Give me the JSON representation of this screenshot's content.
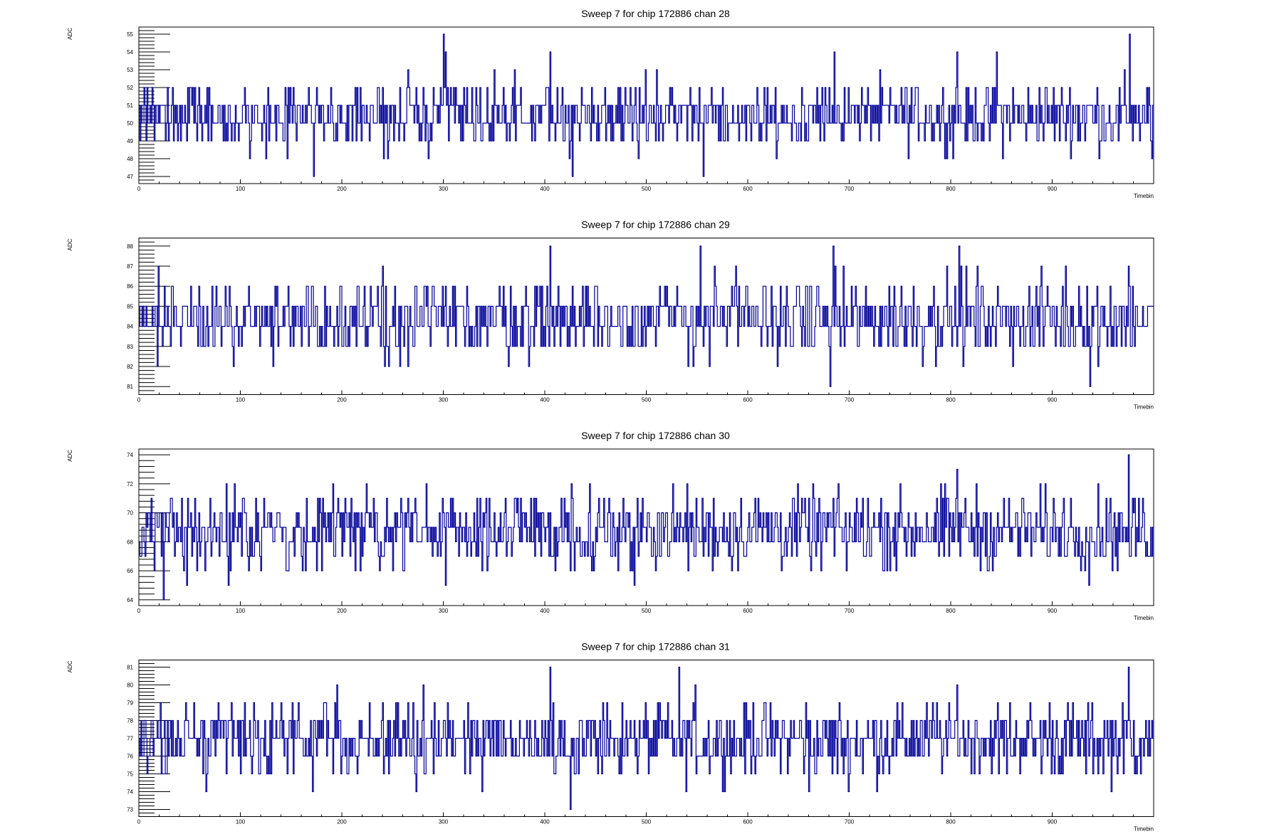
{
  "chart_data": [
    {
      "type": "line",
      "title": "Sweep 7 for chip 172886 chan 28",
      "xlabel": "Timebin",
      "ylabel": "ADC",
      "xlim": [
        0,
        1000
      ],
      "ylim": [
        46.6,
        55.4
      ],
      "xticks": [
        0,
        100,
        200,
        300,
        400,
        500,
        600,
        700,
        800,
        900
      ],
      "yticks": [
        47,
        48,
        49,
        50,
        51,
        52,
        53,
        54,
        55
      ],
      "baseline": 50.4,
      "noise": 0.9,
      "seed": 28,
      "series": [
        {
          "line_style": "step",
          "length": 1000,
          "notable_points": [
            [
              172,
              47
            ],
            [
              300,
              55
            ],
            [
              302,
              54
            ],
            [
              405,
              54
            ],
            [
              427,
              47
            ],
            [
              556,
              47
            ],
            [
              685,
              54
            ],
            [
              806,
              54
            ],
            [
              845,
              54
            ],
            [
              976,
              55
            ],
            [
              998,
              48
            ]
          ]
        }
      ]
    },
    {
      "type": "line",
      "title": "Sweep 7 for chip 172886 chan 29",
      "xlabel": "Timebin",
      "ylabel": "ADC",
      "xlim": [
        0,
        1000
      ],
      "ylim": [
        80.6,
        88.4
      ],
      "xticks": [
        0,
        100,
        200,
        300,
        400,
        500,
        600,
        700,
        800,
        900
      ],
      "yticks": [
        81,
        82,
        83,
        84,
        85,
        86,
        87,
        88
      ],
      "baseline": 84.4,
      "noise": 0.95,
      "seed": 29,
      "series": [
        {
          "line_style": "step",
          "length": 1000,
          "notable_points": [
            [
              405,
              88
            ],
            [
              553,
              88
            ],
            [
              681,
              81
            ],
            [
              684,
              88
            ],
            [
              808,
              88
            ],
            [
              937,
              81
            ],
            [
              975,
              87
            ]
          ]
        }
      ]
    },
    {
      "type": "line",
      "title": "Sweep 7 for chip 172886 chan 30",
      "xlabel": "Timebin",
      "ylabel": "ADC",
      "xlim": [
        0,
        1000
      ],
      "ylim": [
        63.6,
        74.4
      ],
      "xticks": [
        0,
        100,
        200,
        300,
        400,
        500,
        600,
        700,
        800,
        900
      ],
      "yticks": [
        64,
        66,
        68,
        70,
        72,
        74
      ],
      "baseline": 68.8,
      "noise": 1.3,
      "seed": 30,
      "series": [
        {
          "line_style": "step",
          "length": 1000,
          "notable_points": [
            [
              24,
              64
            ],
            [
              302,
              65
            ],
            [
              426,
              65
            ],
            [
              426,
              72
            ],
            [
              806,
              73
            ],
            [
              936,
              65
            ],
            [
              975,
              74
            ]
          ]
        }
      ]
    },
    {
      "type": "line",
      "title": "Sweep 7 for chip 172886 chan 31",
      "xlabel": "Timebin",
      "ylabel": "ADC",
      "xlim": [
        0,
        1000
      ],
      "ylim": [
        72.6,
        81.4
      ],
      "xticks": [
        0,
        100,
        200,
        300,
        400,
        500,
        600,
        700,
        800,
        900
      ],
      "yticks": [
        73,
        74,
        75,
        76,
        77,
        78,
        79,
        80,
        81
      ],
      "baseline": 76.9,
      "noise": 1.0,
      "seed": 31,
      "series": [
        {
          "line_style": "step",
          "length": 1000,
          "notable_points": [
            [
              171,
              74
            ],
            [
              195,
              80
            ],
            [
              338,
              74
            ],
            [
              405,
              81
            ],
            [
              425,
              73
            ],
            [
              532,
              81
            ],
            [
              548,
              80
            ],
            [
              660,
              74
            ],
            [
              806,
              80
            ],
            [
              975,
              81
            ]
          ]
        }
      ]
    }
  ],
  "colors": {
    "trace": "#000099",
    "frame": "#000000",
    "background": "#ffffff"
  }
}
